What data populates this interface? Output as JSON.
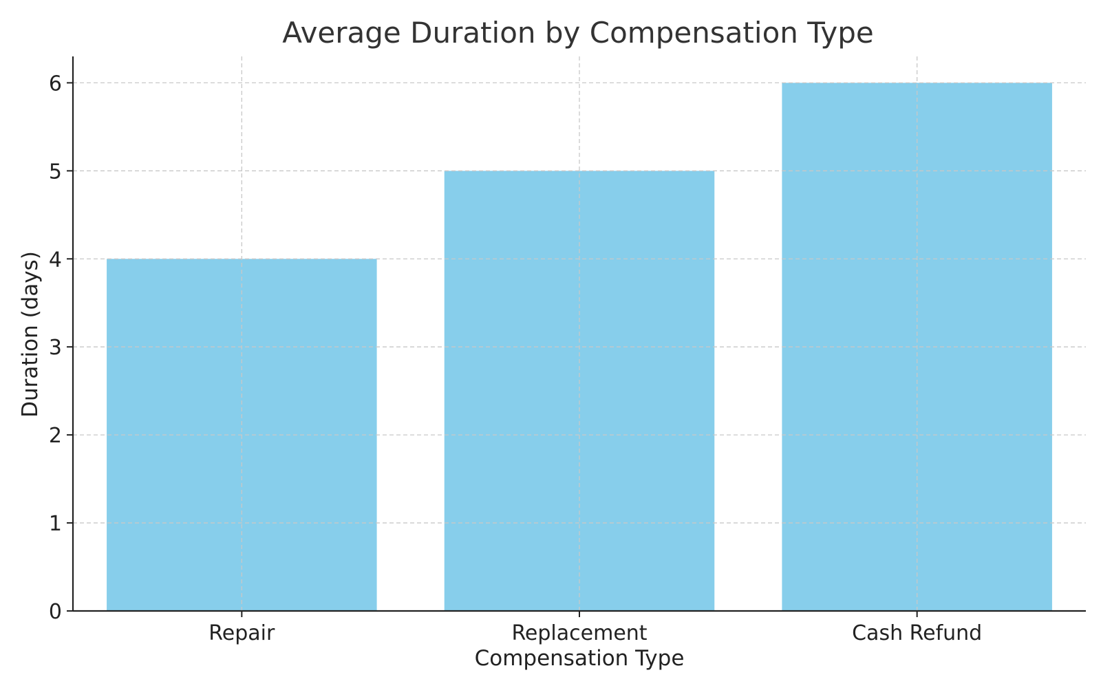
{
  "chart_data": {
    "type": "bar",
    "title": "Average Duration by Compensation Type",
    "xlabel": "Compensation Type",
    "ylabel": "Duration (days)",
    "categories": [
      "Repair",
      "Replacement",
      "Cash Refund"
    ],
    "values": [
      4,
      5,
      6
    ],
    "ylim": [
      0,
      6.3
    ],
    "yticks": [
      0,
      1,
      2,
      3,
      4,
      5,
      6
    ],
    "grid": true,
    "bar_color": "#87CEEB",
    "axis_color": "#222222",
    "grid_color": "#c8c8c8"
  }
}
